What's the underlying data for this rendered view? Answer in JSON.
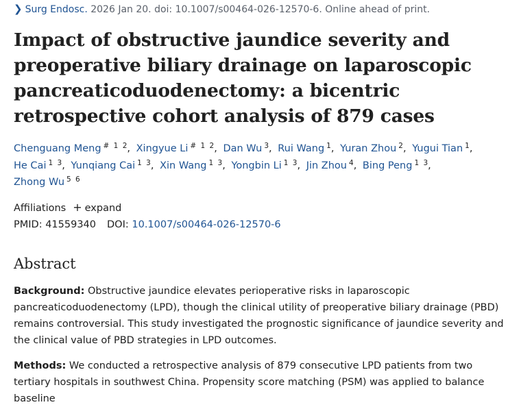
{
  "citation": {
    "journal": "Surg Endosc.",
    "details": " 2026 Jan 20. doi: 10.1007/s00464-026-12570-6. Online ahead of print."
  },
  "article": {
    "title": "Impact of obstructive jaundice severity and preoperative biliary drainage on laparoscopic pancreaticoduodenectomy: a bicentric retrospective cohort analysis of 879 cases"
  },
  "authors": [
    {
      "name": "Chenguang Meng",
      "sup": "# 1 2"
    },
    {
      "name": "Xingyue Li",
      "sup": "# 1 2"
    },
    {
      "name": "Dan Wu",
      "sup": "3"
    },
    {
      "name": "Rui Wang",
      "sup": "1"
    },
    {
      "name": "Yuran Zhou",
      "sup": "2"
    },
    {
      "name": "Yugui Tian",
      "sup": "1"
    },
    {
      "name": "He Cai",
      "sup": "1 3"
    },
    {
      "name": "Yunqiang Cai",
      "sup": "1 3"
    },
    {
      "name": "Xin Wang",
      "sup": "1 3"
    },
    {
      "name": "Yongbin Li",
      "sup": "1 3"
    },
    {
      "name": "Jin Zhou",
      "sup": "4"
    },
    {
      "name": "Bing Peng",
      "sup": "1 3"
    },
    {
      "name": "Zhong Wu",
      "sup": "5 6"
    }
  ],
  "affiliations": {
    "label": "Affiliations",
    "expand_label": "expand"
  },
  "identifiers": {
    "pmid_label": "PMID:",
    "pmid": "41559340",
    "doi_label": "DOI:",
    "doi": "10.1007/s00464-026-12570-6"
  },
  "abstract": {
    "heading": "Abstract",
    "background_label": "Background:",
    "background_text": " Obstructive jaundice elevates perioperative risks in laparoscopic pancreaticoduodenectomy (LPD), though the clinical utility of preoperative biliary drainage (PBD) remains controversial. This study investigated the prognostic significance of jaundice severity and the clinical value of PBD strategies in LPD outcomes.",
    "methods_label": "Methods:",
    "methods_text": " We conducted a retrospective analysis of 879 consecutive LPD patients from two tertiary hospitals in southwest China. Propensity score matching (PSM) was applied to balance baseline"
  }
}
